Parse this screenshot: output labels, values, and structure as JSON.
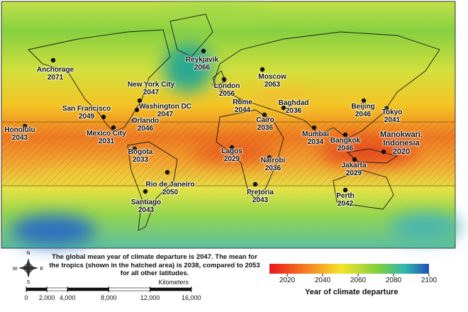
{
  "cities": [
    {
      "name": "Anchorage",
      "year": 2071
    },
    {
      "name": "Reykjavik",
      "year": 2066
    },
    {
      "name": "New York City",
      "year": 2047
    },
    {
      "name": "Washington DC",
      "year": 2047
    },
    {
      "name": "San Francisco",
      "year": 2049
    },
    {
      "name": "London",
      "year": 2056
    },
    {
      "name": "Moscow",
      "year": 2063
    },
    {
      "name": "Rome",
      "year": 2044
    },
    {
      "name": "Cairo",
      "year": 2036
    },
    {
      "name": "Baghdad",
      "year": 2036
    },
    {
      "name": "Beijing",
      "year": 2046
    },
    {
      "name": "Tokyo",
      "year": 2041
    },
    {
      "name": "Honolulu",
      "year": 2043
    },
    {
      "name": "Orlando",
      "year": 2046
    },
    {
      "name": "Mexico City",
      "year": 2031
    },
    {
      "name": "Mumbai",
      "year": 2034
    },
    {
      "name": "Bangkok",
      "year": 2046
    },
    {
      "name": "Manokwari, Indonesia",
      "year": 2020
    },
    {
      "name": "Bogota",
      "year": 2033
    },
    {
      "name": "Lagos",
      "year": 2029
    },
    {
      "name": "Nairobi",
      "year": 2036
    },
    {
      "name": "Jakarta",
      "year": 2029
    },
    {
      "name": "Rio de Janeiro",
      "year": 2050
    },
    {
      "name": "Santiago",
      "year": 2043
    },
    {
      "name": "Pretoria",
      "year": 2043
    },
    {
      "name": "Perth",
      "year": 2042
    }
  ],
  "caption": "The global mean year of climate departure is 2047. The mean for the tropics (shown in the hatched area) is 2038, compared to 2053 for all other latitudes.",
  "compass": {
    "north": "N",
    "south": "S",
    "east": "E",
    "west": "W"
  },
  "scale_bar": {
    "title": "Kilometers",
    "ticks": [
      0,
      {
        "value": 2000,
        "label": "2,000"
      },
      {
        "value": 4000,
        "label": "4,000"
      },
      {
        "value": 8000,
        "label": "8,000"
      },
      {
        "value": 12000,
        "label": "12,000"
      },
      {
        "value": 16000,
        "label": "16,000"
      }
    ]
  },
  "colorbar": {
    "title": "Year of climate departure",
    "range": [
      2010,
      2100
    ],
    "ticks": [
      2020,
      2040,
      2060,
      2080,
      2100
    ]
  }
}
